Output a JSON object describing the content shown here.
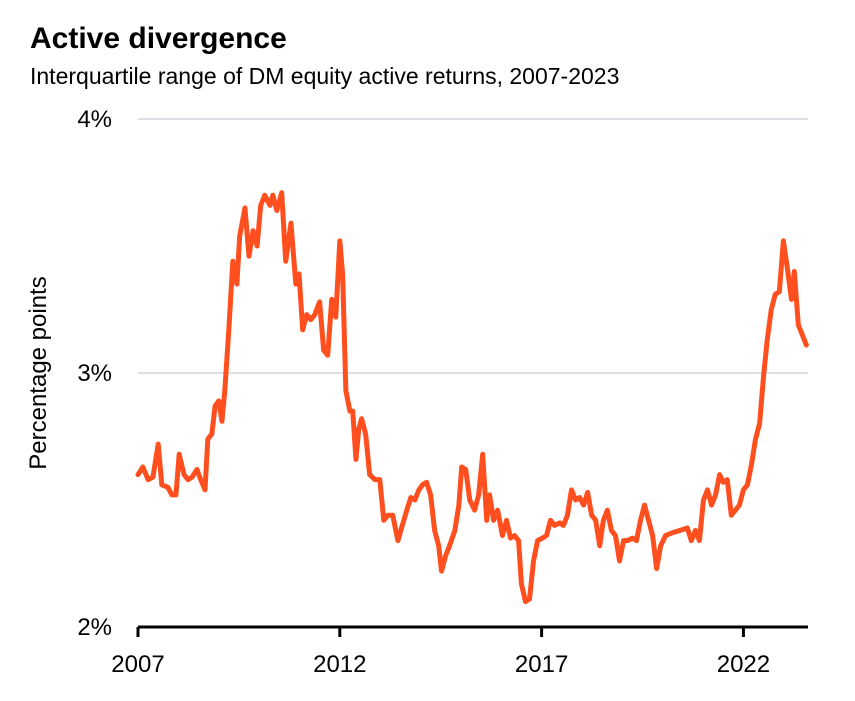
{
  "chart_data": {
    "type": "line",
    "title": "Active divergence",
    "subtitle": "Interquartile range of DM equity active returns, 2007-2023",
    "y_label": "Percentage points",
    "color": "#ff4f1f",
    "grid": true,
    "xlim": [
      2007,
      2023.6
    ],
    "xticks": [
      2007,
      2012,
      2017,
      2022
    ],
    "ylim": [
      2,
      4
    ],
    "yticks": [
      {
        "value": 2,
        "label": "2%"
      },
      {
        "value": 3,
        "label": "3%"
      },
      {
        "value": 4,
        "label": "4%"
      }
    ],
    "x": [
      2007.0,
      2007.12,
      2007.25,
      2007.37,
      2007.5,
      2007.59,
      2007.74,
      2007.84,
      2007.94,
      2008.02,
      2008.14,
      2008.24,
      2008.34,
      2008.46,
      2008.53,
      2008.66,
      2008.73,
      2008.83,
      2008.91,
      2009.0,
      2009.08,
      2009.15,
      2009.25,
      2009.35,
      2009.45,
      2009.52,
      2009.65,
      2009.75,
      2009.85,
      2009.95,
      2010.04,
      2010.14,
      2010.27,
      2010.34,
      2010.44,
      2010.56,
      2010.66,
      2010.79,
      2010.91,
      2010.99,
      2011.08,
      2011.18,
      2011.28,
      2011.38,
      2011.5,
      2011.6,
      2011.7,
      2011.8,
      2011.9,
      2012.0,
      2012.07,
      2012.15,
      2012.25,
      2012.32,
      2012.4,
      2012.47,
      2012.54,
      2012.64,
      2012.74,
      2012.87,
      2012.99,
      2013.09,
      2013.19,
      2013.31,
      2013.44,
      2013.53,
      2013.66,
      2013.76,
      2013.86,
      2013.96,
      2014.05,
      2014.15,
      2014.25,
      2014.35,
      2014.45,
      2014.52,
      2014.62,
      2014.72,
      2014.85,
      2014.95,
      2015.02,
      2015.12,
      2015.22,
      2015.34,
      2015.44,
      2015.54,
      2015.64,
      2015.71,
      2015.81,
      2015.91,
      2016.03,
      2016.13,
      2016.23,
      2016.33,
      2016.43,
      2016.5,
      2016.6,
      2016.7,
      2016.8,
      2016.9,
      2017.02,
      2017.12,
      2017.22,
      2017.32,
      2017.45,
      2017.54,
      2017.64,
      2017.74,
      2017.84,
      2017.94,
      2018.04,
      2018.14,
      2018.24,
      2018.34,
      2018.44,
      2018.53,
      2018.63,
      2018.73,
      2018.83,
      2018.93,
      2019.03,
      2019.13,
      2019.25,
      2019.35,
      2019.45,
      2019.55,
      2019.65,
      2019.75,
      2019.85,
      2019.95,
      2020.07,
      2020.22,
      2020.42,
      2020.61,
      2020.71,
      2020.81,
      2020.91,
      2021.01,
      2021.11,
      2021.21,
      2021.31,
      2021.41,
      2021.5,
      2021.6,
      2021.7,
      2021.8,
      2021.9,
      2022.0,
      2022.1,
      2022.2,
      2022.3,
      2022.4,
      2022.5,
      2022.59,
      2022.69,
      2022.79,
      2022.89,
      2022.99,
      2023.09,
      2023.19,
      2023.26,
      2023.36,
      2023.46,
      2023.56
    ],
    "values": [
      2.6,
      2.63,
      2.58,
      2.59,
      2.72,
      2.56,
      2.55,
      2.52,
      2.52,
      2.68,
      2.6,
      2.58,
      2.59,
      2.62,
      2.59,
      2.54,
      2.74,
      2.76,
      2.87,
      2.89,
      2.81,
      2.93,
      3.17,
      3.44,
      3.35,
      3.54,
      3.65,
      3.46,
      3.56,
      3.5,
      3.66,
      3.7,
      3.66,
      3.7,
      3.64,
      3.71,
      3.44,
      3.59,
      3.35,
      3.39,
      3.17,
      3.23,
      3.21,
      3.23,
      3.28,
      3.09,
      3.07,
      3.29,
      3.22,
      3.52,
      3.39,
      2.93,
      2.85,
      2.85,
      2.66,
      2.78,
      2.82,
      2.76,
      2.6,
      2.58,
      2.58,
      2.42,
      2.44,
      2.44,
      2.34,
      2.39,
      2.46,
      2.51,
      2.5,
      2.54,
      2.56,
      2.57,
      2.52,
      2.38,
      2.32,
      2.22,
      2.28,
      2.32,
      2.38,
      2.48,
      2.63,
      2.62,
      2.5,
      2.46,
      2.52,
      2.68,
      2.42,
      2.52,
      2.42,
      2.46,
      2.36,
      2.42,
      2.35,
      2.36,
      2.34,
      2.17,
      2.1,
      2.11,
      2.26,
      2.34,
      2.35,
      2.36,
      2.42,
      2.4,
      2.41,
      2.4,
      2.44,
      2.54,
      2.5,
      2.51,
      2.48,
      2.53,
      2.44,
      2.42,
      2.32,
      2.42,
      2.46,
      2.38,
      2.36,
      2.26,
      2.34,
      2.34,
      2.35,
      2.34,
      2.42,
      2.48,
      2.42,
      2.36,
      2.23,
      2.32,
      2.36,
      2.37,
      2.38,
      2.39,
      2.34,
      2.38,
      2.34,
      2.5,
      2.54,
      2.48,
      2.52,
      2.6,
      2.57,
      2.58,
      2.44,
      2.46,
      2.48,
      2.54,
      2.56,
      2.64,
      2.74,
      2.8,
      2.99,
      3.13,
      3.25,
      3.31,
      3.32,
      3.52,
      3.41,
      3.29,
      3.4,
      3.19,
      3.15,
      3.11
    ]
  }
}
